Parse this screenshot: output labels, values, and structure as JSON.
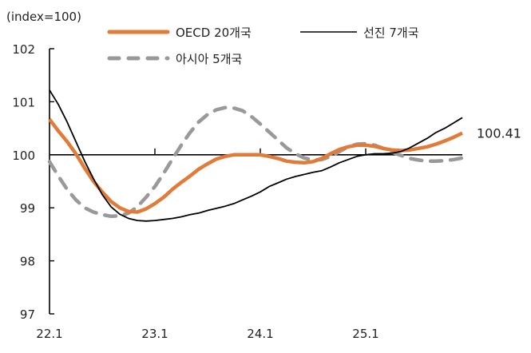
{
  "chart_data": {
    "type": "line",
    "unit_label": "(index=100)",
    "ylim": [
      97,
      102
    ],
    "yticks": [
      "97",
      "98",
      "99",
      "100",
      "101",
      "102"
    ],
    "xtick_labels": [
      "22.1",
      "23.1",
      "24.1",
      "25.1"
    ],
    "reference_line": 100,
    "grid": false,
    "legend_placement": "top",
    "x": [
      "22.1",
      "22.2",
      "22.3",
      "22.4",
      "22.5",
      "22.6",
      "22.7",
      "22.8",
      "22.9",
      "22.10",
      "22.11",
      "22.12",
      "23.1",
      "23.2",
      "23.3",
      "23.4",
      "23.5",
      "23.6",
      "23.7",
      "23.8",
      "23.9",
      "23.10",
      "23.11",
      "23.12",
      "24.1",
      "24.2",
      "24.3",
      "24.4",
      "24.5",
      "24.6",
      "24.7",
      "24.8",
      "24.9",
      "24.10",
      "24.11",
      "24.12",
      "25.1",
      "25.2",
      "25.3",
      "25.4",
      "25.5",
      "25.6",
      "25.7",
      "25.8",
      "25.9",
      "25.10",
      "25.11",
      "25.12"
    ],
    "series": [
      {
        "name": "OECD 20개국",
        "color": "#E07B39",
        "style": "solid-thick",
        "values": [
          100.67,
          100.45,
          100.25,
          100.02,
          99.75,
          99.5,
          99.3,
          99.12,
          99.0,
          98.93,
          98.92,
          98.98,
          99.08,
          99.2,
          99.35,
          99.48,
          99.6,
          99.73,
          99.83,
          99.92,
          99.97,
          100.0,
          100.0,
          100.0,
          100.0,
          99.97,
          99.93,
          99.88,
          99.86,
          99.85,
          99.87,
          99.93,
          100.02,
          100.1,
          100.15,
          100.18,
          100.18,
          100.16,
          100.12,
          100.09,
          100.08,
          100.09,
          100.12,
          100.15,
          100.2,
          100.26,
          100.33,
          100.41
        ]
      },
      {
        "name": "선진 7개국",
        "color": "#000000",
        "style": "solid-thin",
        "values": [
          101.22,
          100.95,
          100.62,
          100.25,
          99.88,
          99.55,
          99.25,
          99.02,
          98.88,
          98.8,
          98.76,
          98.75,
          98.76,
          98.78,
          98.8,
          98.83,
          98.87,
          98.9,
          98.95,
          98.99,
          99.03,
          99.08,
          99.15,
          99.22,
          99.3,
          99.4,
          99.47,
          99.54,
          99.59,
          99.63,
          99.67,
          99.7,
          99.77,
          99.85,
          99.91,
          99.97,
          100.0,
          100.02,
          100.02,
          100.03,
          100.06,
          100.13,
          100.22,
          100.31,
          100.42,
          100.5,
          100.6,
          100.7
        ]
      },
      {
        "name": "아시아 5개국",
        "color": "#999999",
        "style": "dashed",
        "values": [
          99.87,
          99.6,
          99.35,
          99.15,
          99.0,
          98.92,
          98.87,
          98.84,
          98.85,
          98.9,
          99.02,
          99.2,
          99.4,
          99.65,
          99.92,
          100.18,
          100.42,
          100.62,
          100.76,
          100.85,
          100.89,
          100.88,
          100.83,
          100.72,
          100.58,
          100.43,
          100.28,
          100.13,
          100.02,
          99.94,
          99.9,
          99.91,
          99.97,
          100.06,
          100.15,
          100.2,
          100.21,
          100.18,
          100.12,
          100.05,
          99.99,
          99.93,
          99.9,
          99.88,
          99.88,
          99.89,
          99.91,
          99.94
        ]
      }
    ],
    "annotations": [
      {
        "text": "100.41",
        "series": "OECD 20개국",
        "x": "25.12"
      }
    ]
  }
}
